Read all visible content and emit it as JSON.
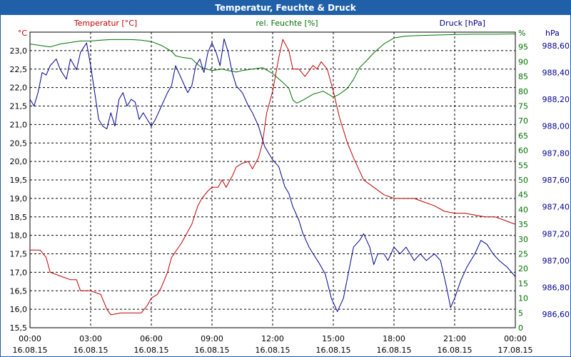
{
  "window": {
    "title": "Temperatur, Feuchte & Druck"
  },
  "colors": {
    "temperature": "#c00000",
    "humidity": "#007000",
    "pressure": "#000090",
    "grid": "#000000",
    "title_bg": "#1f60a8"
  },
  "chart_data": {
    "type": "line",
    "title": "Temperatur, Feuchte & Druck",
    "x_hours": [
      0,
      24
    ],
    "x_ticks": [
      {
        "time": "00:00",
        "date": "16.08.15"
      },
      {
        "time": "03:00",
        "date": "16.08.15"
      },
      {
        "time": "06:00",
        "date": "16.08.15"
      },
      {
        "time": "09:00",
        "date": "16.08.15"
      },
      {
        "time": "12:00",
        "date": "16.08.15"
      },
      {
        "time": "15:00",
        "date": "16.08.15"
      },
      {
        "time": "18:00",
        "date": "16.08.15"
      },
      {
        "time": "21:00",
        "date": "16.08.15"
      },
      {
        "time": "00:00",
        "date": "17.08.15"
      }
    ],
    "axes": {
      "temperature": {
        "label": "Temperatur [°C]",
        "unit": "°C",
        "range": [
          15.5,
          23.5
        ],
        "ticks": [
          "15,5",
          "16,0",
          "16,5",
          "17,0",
          "17,5",
          "18,0",
          "18,5",
          "19,0",
          "19,5",
          "20,0",
          "20,5",
          "21,0",
          "21,5",
          "22,0",
          "22,5",
          "23,0"
        ]
      },
      "humidity": {
        "label": "rel. Feuchte [%]",
        "unit": "%",
        "range": [
          0,
          100
        ],
        "ticks": [
          "0",
          "5",
          "10",
          "15",
          "20",
          "25",
          "30",
          "35",
          "40",
          "45",
          "50",
          "55",
          "60",
          "65",
          "70",
          "75",
          "80",
          "85",
          "90",
          "95"
        ]
      },
      "pressure": {
        "label": "Druck [hPa]",
        "unit": "hPa",
        "range": [
          986.5,
          988.7
        ],
        "ticks": [
          "986,60",
          "986,80",
          "987,00",
          "987,20",
          "987,40",
          "987,60",
          "987,80",
          "988,00",
          "988,20",
          "988,40",
          "988,60"
        ]
      }
    },
    "series": [
      {
        "name": "Temperatur [°C]",
        "axis": "temperature",
        "points": [
          [
            0,
            17.6
          ],
          [
            0.5,
            17.6
          ],
          [
            0.8,
            17.4
          ],
          [
            1.0,
            17.0
          ],
          [
            1.5,
            16.9
          ],
          [
            2.0,
            16.8
          ],
          [
            2.3,
            16.8
          ],
          [
            2.5,
            16.5
          ],
          [
            3.0,
            16.5
          ],
          [
            3.5,
            16.4
          ],
          [
            3.8,
            16.0
          ],
          [
            4.0,
            15.85
          ],
          [
            4.5,
            15.9
          ],
          [
            5.0,
            15.9
          ],
          [
            5.5,
            15.9
          ],
          [
            5.8,
            16.1
          ],
          [
            6.0,
            16.3
          ],
          [
            6.3,
            16.4
          ],
          [
            6.5,
            16.6
          ],
          [
            6.8,
            17.0
          ],
          [
            7.0,
            17.4
          ],
          [
            7.5,
            17.8
          ],
          [
            8.0,
            18.3
          ],
          [
            8.3,
            18.8
          ],
          [
            8.5,
            19.0
          ],
          [
            8.8,
            19.2
          ],
          [
            9.0,
            19.3
          ],
          [
            9.3,
            19.3
          ],
          [
            9.5,
            19.5
          ],
          [
            9.7,
            19.3
          ],
          [
            10.0,
            19.6
          ],
          [
            10.2,
            19.85
          ],
          [
            10.5,
            19.95
          ],
          [
            10.8,
            20.0
          ],
          [
            11.0,
            19.8
          ],
          [
            11.3,
            20.1
          ],
          [
            11.5,
            20.5
          ],
          [
            11.7,
            21.3
          ],
          [
            12.0,
            21.9
          ],
          [
            12.3,
            22.8
          ],
          [
            12.5,
            23.3
          ],
          [
            12.8,
            23.0
          ],
          [
            13.0,
            22.5
          ],
          [
            13.3,
            22.5
          ],
          [
            13.6,
            22.3
          ],
          [
            14.0,
            22.6
          ],
          [
            14.2,
            22.5
          ],
          [
            14.4,
            22.7
          ],
          [
            14.7,
            22.5
          ],
          [
            15.0,
            21.9
          ],
          [
            15.3,
            21.2
          ],
          [
            15.7,
            20.5
          ],
          [
            16.0,
            20.1
          ],
          [
            16.5,
            19.5
          ],
          [
            17.0,
            19.3
          ],
          [
            17.5,
            19.1
          ],
          [
            18.0,
            19.0
          ],
          [
            18.5,
            19.0
          ],
          [
            19.0,
            19.0
          ],
          [
            19.5,
            18.9
          ],
          [
            20.0,
            18.8
          ],
          [
            20.5,
            18.65
          ],
          [
            21.0,
            18.6
          ],
          [
            21.5,
            18.6
          ],
          [
            22.0,
            18.55
          ],
          [
            22.5,
            18.5
          ],
          [
            23.0,
            18.5
          ],
          [
            23.5,
            18.4
          ],
          [
            24.0,
            18.3
          ]
        ]
      },
      {
        "name": "rel. Feuchte [%]",
        "axis": "humidity",
        "points": [
          [
            0,
            96
          ],
          [
            0.5,
            95.5
          ],
          [
            1.0,
            95
          ],
          [
            1.5,
            96
          ],
          [
            2.0,
            96.5
          ],
          [
            2.5,
            97
          ],
          [
            3.0,
            97
          ],
          [
            3.5,
            97.3
          ],
          [
            4.0,
            97.5
          ],
          [
            4.5,
            97.5
          ],
          [
            5.0,
            97.5
          ],
          [
            5.5,
            97.3
          ],
          [
            6.0,
            96.8
          ],
          [
            6.5,
            95.5
          ],
          [
            7.0,
            93.5
          ],
          [
            7.2,
            92
          ],
          [
            7.5,
            91.5
          ],
          [
            8.0,
            91
          ],
          [
            8.3,
            89
          ],
          [
            8.5,
            88
          ],
          [
            9.0,
            87
          ],
          [
            9.5,
            87.5
          ],
          [
            9.8,
            87
          ],
          [
            10.2,
            86.5
          ],
          [
            10.5,
            87
          ],
          [
            11.0,
            87.5
          ],
          [
            11.5,
            88
          ],
          [
            12.0,
            86
          ],
          [
            12.5,
            83
          ],
          [
            12.8,
            81
          ],
          [
            13.0,
            77
          ],
          [
            13.2,
            76
          ],
          [
            13.5,
            77
          ],
          [
            14.0,
            79
          ],
          [
            14.5,
            80
          ],
          [
            15.0,
            78
          ],
          [
            15.3,
            79
          ],
          [
            15.7,
            81
          ],
          [
            16.0,
            84
          ],
          [
            16.3,
            88
          ],
          [
            16.6,
            90
          ],
          [
            17.0,
            93
          ],
          [
            17.5,
            96
          ],
          [
            18.0,
            98
          ],
          [
            18.5,
            98.6
          ],
          [
            19.0,
            98.8
          ],
          [
            20.0,
            99
          ],
          [
            21.0,
            99.2
          ],
          [
            22.0,
            99.3
          ],
          [
            23.0,
            99.3
          ],
          [
            24.0,
            99.4
          ]
        ]
      },
      {
        "name": "Druck [hPa]",
        "axis": "pressure",
        "points": [
          [
            0,
            988.2
          ],
          [
            0.2,
            988.15
          ],
          [
            0.4,
            988.25
          ],
          [
            0.6,
            988.4
          ],
          [
            0.8,
            988.38
          ],
          [
            1.0,
            988.45
          ],
          [
            1.3,
            988.5
          ],
          [
            1.5,
            988.42
          ],
          [
            1.8,
            988.35
          ],
          [
            2.0,
            988.5
          ],
          [
            2.3,
            988.42
          ],
          [
            2.5,
            988.55
          ],
          [
            2.8,
            988.62
          ],
          [
            3.0,
            988.45
          ],
          [
            3.2,
            988.25
          ],
          [
            3.4,
            988.05
          ],
          [
            3.6,
            988.0
          ],
          [
            3.8,
            987.98
          ],
          [
            4.0,
            988.1
          ],
          [
            4.2,
            988.0
          ],
          [
            4.4,
            988.2
          ],
          [
            4.6,
            988.25
          ],
          [
            4.8,
            988.15
          ],
          [
            5.0,
            988.2
          ],
          [
            5.2,
            988.18
          ],
          [
            5.4,
            988.05
          ],
          [
            5.6,
            988.1
          ],
          [
            5.8,
            988.05
          ],
          [
            6.0,
            988.0
          ],
          [
            6.2,
            988.05
          ],
          [
            6.5,
            988.15
          ],
          [
            6.8,
            988.25
          ],
          [
            7.0,
            988.3
          ],
          [
            7.2,
            988.45
          ],
          [
            7.5,
            988.35
          ],
          [
            7.8,
            988.25
          ],
          [
            8.0,
            988.3
          ],
          [
            8.2,
            988.45
          ],
          [
            8.4,
            988.5
          ],
          [
            8.6,
            988.4
          ],
          [
            8.8,
            988.55
          ],
          [
            9.0,
            988.62
          ],
          [
            9.2,
            988.55
          ],
          [
            9.4,
            988.45
          ],
          [
            9.6,
            988.65
          ],
          [
            9.8,
            988.55
          ],
          [
            10.0,
            988.4
          ],
          [
            10.2,
            988.3
          ],
          [
            10.5,
            988.25
          ],
          [
            10.8,
            988.15
          ],
          [
            11.0,
            988.1
          ],
          [
            11.3,
            988.0
          ],
          [
            11.6,
            987.85
          ],
          [
            11.8,
            987.8
          ],
          [
            12.0,
            987.75
          ],
          [
            12.3,
            987.7
          ],
          [
            12.6,
            987.55
          ],
          [
            12.8,
            987.5
          ],
          [
            13.0,
            987.4
          ],
          [
            13.3,
            987.3
          ],
          [
            13.5,
            987.2
          ],
          [
            13.8,
            987.1
          ],
          [
            14.0,
            987.05
          ],
          [
            14.3,
            986.98
          ],
          [
            14.6,
            986.9
          ],
          [
            14.9,
            986.72
          ],
          [
            15.2,
            986.62
          ],
          [
            15.5,
            986.72
          ],
          [
            15.8,
            986.95
          ],
          [
            16.0,
            987.1
          ],
          [
            16.3,
            987.15
          ],
          [
            16.5,
            987.2
          ],
          [
            16.8,
            987.1
          ],
          [
            17.0,
            986.97
          ],
          [
            17.2,
            987.05
          ],
          [
            17.5,
            987.05
          ],
          [
            17.7,
            987.0
          ],
          [
            18.0,
            987.1
          ],
          [
            18.3,
            987.05
          ],
          [
            18.6,
            987.1
          ],
          [
            19.0,
            987.0
          ],
          [
            19.3,
            987.05
          ],
          [
            19.6,
            987.0
          ],
          [
            20.0,
            987.05
          ],
          [
            20.3,
            987.0
          ],
          [
            20.6,
            986.8
          ],
          [
            20.8,
            986.65
          ],
          [
            21.0,
            986.72
          ],
          [
            21.3,
            986.85
          ],
          [
            21.6,
            986.95
          ],
          [
            22.0,
            987.05
          ],
          [
            22.3,
            987.15
          ],
          [
            22.6,
            987.12
          ],
          [
            22.9,
            987.05
          ],
          [
            23.2,
            987.0
          ],
          [
            23.6,
            986.95
          ],
          [
            24.0,
            986.88
          ]
        ]
      }
    ]
  }
}
